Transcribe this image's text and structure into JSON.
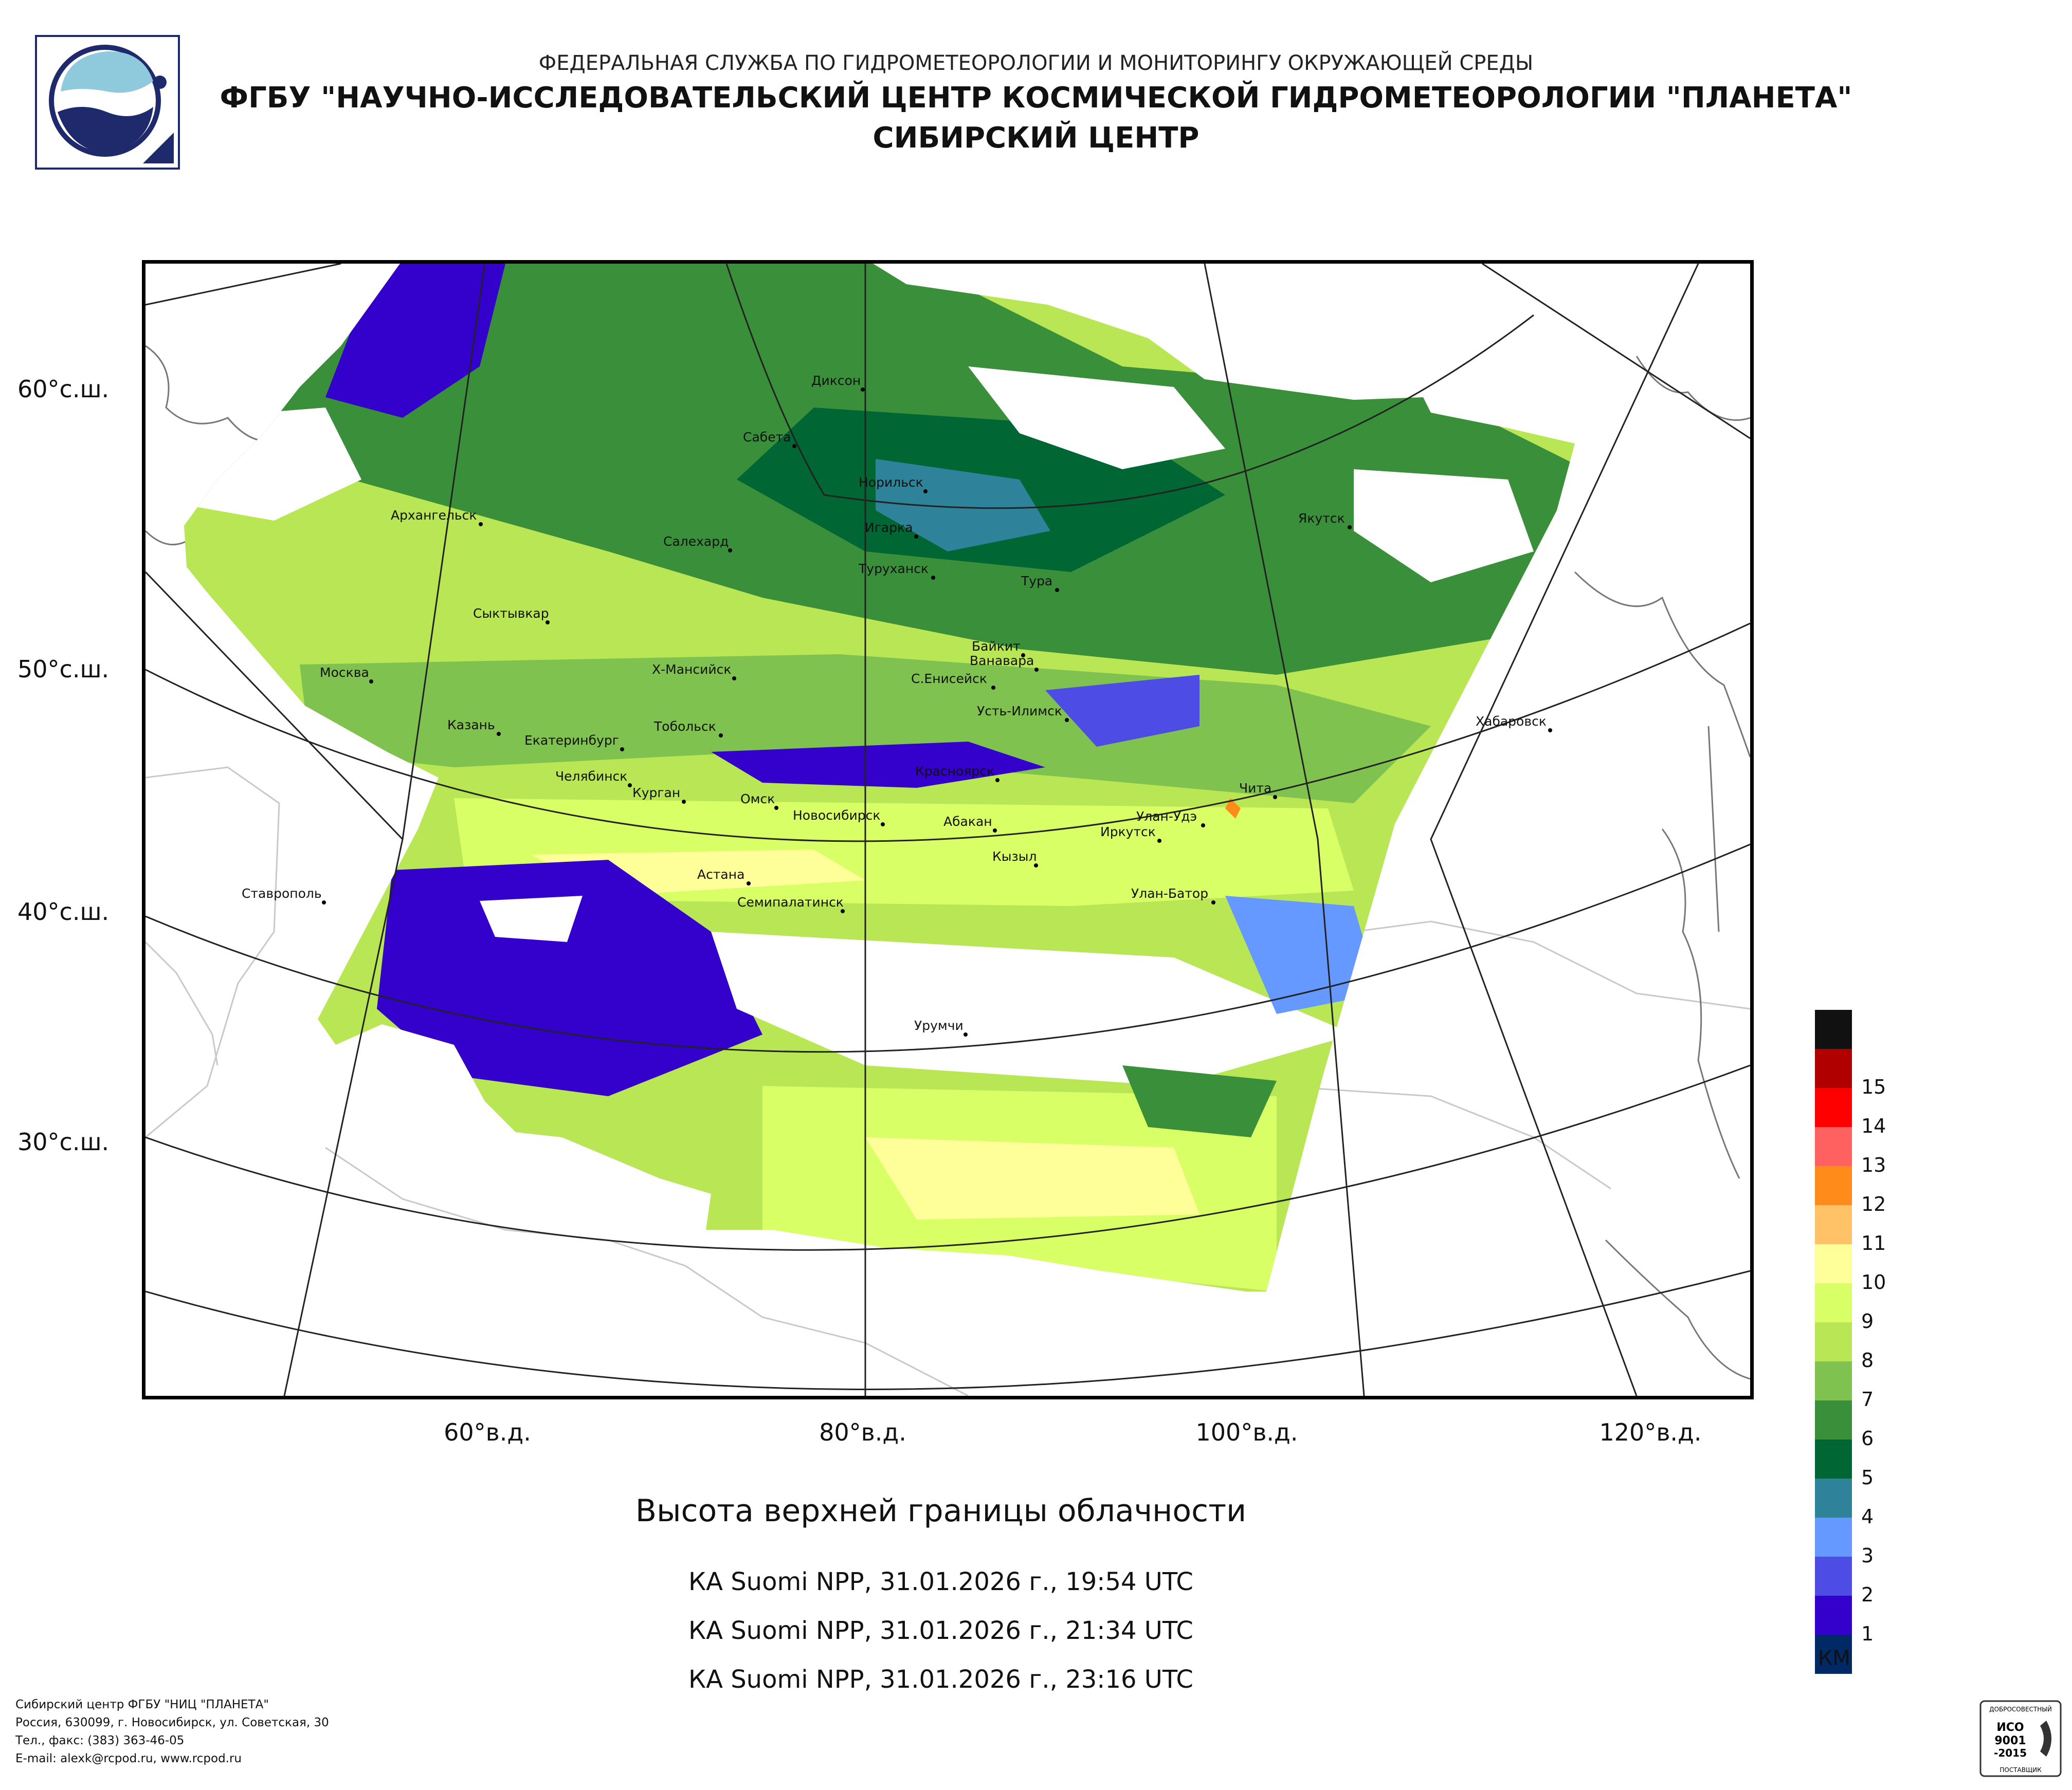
{
  "header": {
    "line1": "ФЕДЕРАЛЬНАЯ СЛУЖБА ПО ГИДРОМЕТЕОРОЛОГИИ И МОНИТОРИНГУ ОКРУЖАЮЩЕЙ СРЕДЫ",
    "line2": "ФГБУ \"НАУЧНО-ИССЛЕДОВАТЕЛЬСКИЙ ЦЕНТР КОСМИЧЕСКОЙ ГИДРОМЕТЕОРОЛОГИИ \"ПЛАНЕТА\"",
    "line3": "СИБИРСКИЙ ЦЕНТР"
  },
  "map": {
    "lat_labels": [
      "60°с.ш.",
      "50°с.ш.",
      "40°с.ш.",
      "30°с.ш."
    ],
    "lon_labels": [
      "60°в.д.",
      "80°в.д.",
      "100°в.д.",
      "120°в.д."
    ],
    "cities": [
      "Диксон",
      "Сабета",
      "Норильск",
      "Игарка",
      "Туруханск",
      "Салехард",
      "Архангельск",
      "Якутск",
      "Тура",
      "Сыктывкар",
      "Москва",
      "Байкит",
      "Ванавара",
      "Х-Мансийск",
      "С.Енисейск",
      "Усть-Илимск",
      "Хабаровск",
      "Казань",
      "Екатеринбург",
      "Тобольск",
      "Челябинск",
      "Курган",
      "Красноярск",
      "Омск",
      "Новосибирск",
      "Абакан",
      "Чита",
      "Улан-Удэ",
      "Иркутск",
      "Кызыл",
      "Астана",
      "Ставрополь",
      "Семипалатинск",
      "Улан-Батор",
      "Урумчи"
    ]
  },
  "product_title": "Высота верхней границы облачности",
  "passes": [
    "КА Suomi NPP, 31.01.2026 г., 19:54 UTC",
    "КА Suomi NPP, 31.01.2026 г., 21:34 UTC",
    "КА Suomi NPP, 31.01.2026 г., 23:16 UTC"
  ],
  "legend": {
    "unit": "КМ",
    "levels": [
      {
        "label": "",
        "color": "#111111"
      },
      {
        "label": "15",
        "color": "#b00000"
      },
      {
        "label": "14",
        "color": "#ff0000"
      },
      {
        "label": "13",
        "color": "#ff6060"
      },
      {
        "label": "12",
        "color": "#ff8c1a"
      },
      {
        "label": "11",
        "color": "#ffc266"
      },
      {
        "label": "10",
        "color": "#ffff99"
      },
      {
        "label": "9",
        "color": "#d8ff66"
      },
      {
        "label": "8",
        "color": "#b8e655"
      },
      {
        "label": "7",
        "color": "#7fc24f"
      },
      {
        "label": "6",
        "color": "#3a8f3a"
      },
      {
        "label": "5",
        "color": "#006633"
      },
      {
        "label": "4",
        "color": "#2e8299"
      },
      {
        "label": "3",
        "color": "#6699ff"
      },
      {
        "label": "2",
        "color": "#4d4de6"
      },
      {
        "label": "1",
        "color": "#3300cc"
      },
      {
        "label": "",
        "color": "#002966"
      }
    ]
  },
  "footer": {
    "line1": "Сибирский центр ФГБУ \"НИЦ \"ПЛАНЕТА\"",
    "line2": "Россия, 630099, г. Новосибирск, ул. Советская, 30",
    "line3": "Тел., факс: (383) 363-46-05",
    "line4": "E-mail: alexk@rcpod.ru, www.rcpod.ru"
  },
  "iso_badge": {
    "top": "ДОБРОСОВЕСТНЫЙ",
    "mid1": "ИСО",
    "mid2": "9001",
    "mid3": "-2015",
    "bottom": "ПОСТАВЩИК"
  }
}
